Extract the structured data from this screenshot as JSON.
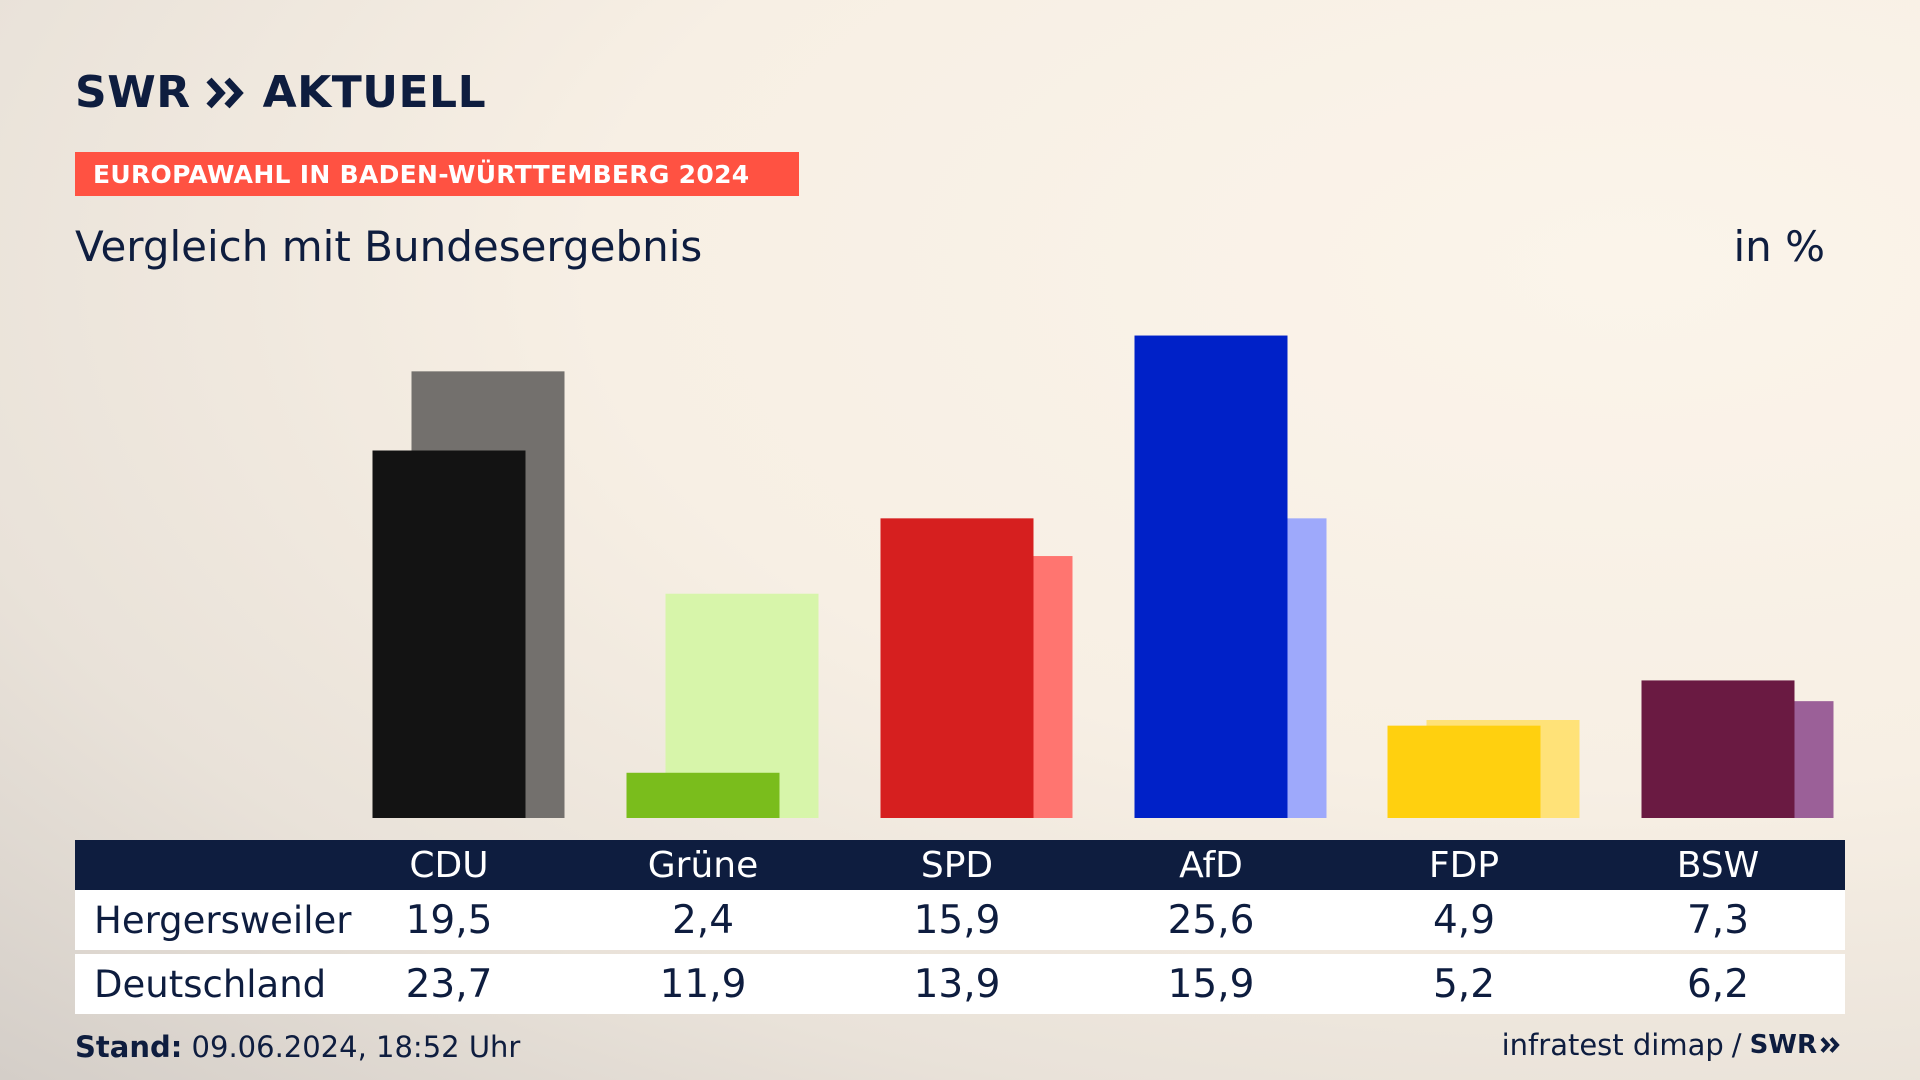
{
  "header": {
    "logo_text_1": "SWR",
    "logo_text_2": "AKTUELL",
    "banner": "EUROPAWAHL IN BADEN-WÜRTTEMBERG 2024",
    "subtitle": "Vergleich mit Bundesergebnis",
    "unit": "in %"
  },
  "colors": {
    "banner": "#ff5242",
    "navy": "#0e1d3f",
    "CDU": [
      "#131313",
      "#73706d"
    ],
    "Grüne": [
      "#7abd1c",
      "#d7f5aa"
    ],
    "SPD": [
      "#d61f1f",
      "#ff7570"
    ],
    "AfD": [
      "#0021c8",
      "#9ea9fb"
    ],
    "FDP": [
      "#ffd00f",
      "#ffe278"
    ],
    "BSW": [
      "#6a1a42",
      "#9b6098"
    ]
  },
  "chart_data": {
    "type": "bar",
    "categories": [
      "CDU",
      "Grüne",
      "SPD",
      "AfD",
      "FDP",
      "BSW"
    ],
    "series": [
      {
        "name": "Hergersweiler",
        "values": [
          19.5,
          2.4,
          15.9,
          25.6,
          4.9,
          7.3
        ]
      },
      {
        "name": "Deutschland",
        "values": [
          23.7,
          11.9,
          13.9,
          15.9,
          5.2,
          6.2
        ]
      }
    ],
    "title": "Vergleich mit Bundesergebnis",
    "ylabel": "in %",
    "ylim": [
      0,
      26
    ],
    "grid": false,
    "legend": "none"
  },
  "table": {
    "headers": [
      "CDU",
      "Grüne",
      "SPD",
      "AfD",
      "FDP",
      "BSW"
    ],
    "rows": [
      {
        "label": "Hergersweiler",
        "values": [
          "19,5",
          "2,4",
          "15,9",
          "25,6",
          "4,9",
          "7,3"
        ]
      },
      {
        "label": "Deutschland",
        "values": [
          "23,7",
          "11,9",
          "13,9",
          "15,9",
          "5,2",
          "6,2"
        ]
      }
    ]
  },
  "footer": {
    "stand_label": "Stand:",
    "stand_value": " 09.06.2024, 18:52 Uhr",
    "source": "infratest dimap",
    "separator": "/",
    "brand": "SWR"
  }
}
